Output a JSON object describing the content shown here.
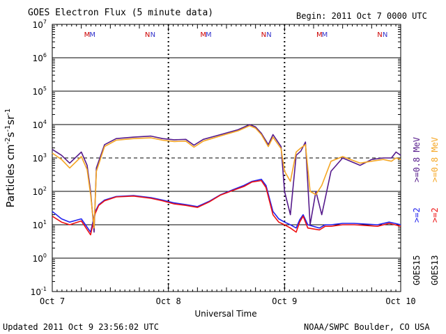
{
  "header": {
    "title": "GOES Electron Flux (5 minute data)",
    "begin": "Begin: 2011 Oct 7 0000 UTC"
  },
  "footer": {
    "updated": "Updated 2011 Oct  9 23:56:02 UTC",
    "source": "NOAA/SWPC Boulder, CO USA"
  },
  "chart_data": {
    "type": "line",
    "title": "GOES Electron Flux (5 minute data)",
    "xlabel": "Universal Time",
    "ylabel": "Particles cm-2 s-1 sr-1",
    "yscale": "log",
    "ylim": [
      0.1,
      10000000
    ],
    "xlim_days": [
      0,
      3
    ],
    "x_tick_labels": [
      "Oct 7",
      "Oct 8",
      "Oct 9",
      "Oct 10"
    ],
    "y_tick_labels": [
      {
        "base": "10",
        "exp": "-1"
      },
      {
        "base": "10",
        "exp": "0"
      },
      {
        "base": "10",
        "exp": "1"
      },
      {
        "base": "10",
        "exp": "2"
      },
      {
        "base": "10",
        "exp": "3"
      },
      {
        "base": "10",
        "exp": "4"
      },
      {
        "base": "10",
        "exp": "5"
      },
      {
        "base": "10",
        "exp": "6"
      },
      {
        "base": "10",
        "exp": "7"
      }
    ],
    "threshold": 1000,
    "markers": [
      {
        "label": "M",
        "day": 0.3,
        "color": "#cc0000"
      },
      {
        "label": "M",
        "day": 0.31,
        "color": "#3333cc"
      },
      {
        "label": "N",
        "day": 0.82,
        "color": "#cc0000"
      },
      {
        "label": "N",
        "day": 0.83,
        "color": "#3333cc"
      },
      {
        "label": "M",
        "day": 1.3,
        "color": "#cc0000"
      },
      {
        "label": "M",
        "day": 1.31,
        "color": "#3333cc"
      },
      {
        "label": "N",
        "day": 1.82,
        "color": "#cc0000"
      },
      {
        "label": "N",
        "day": 1.83,
        "color": "#3333cc"
      },
      {
        "label": "M",
        "day": 2.3,
        "color": "#cc0000"
      },
      {
        "label": "M",
        "day": 2.31,
        "color": "#3333cc"
      },
      {
        "label": "N",
        "day": 2.82,
        "color": "#cc0000"
      },
      {
        "label": "N",
        "day": 2.83,
        "color": "#3333cc"
      }
    ],
    "series": [
      {
        "name": ">=2 MeV GOES15",
        "color": "#2222ee",
        "x": [
          0,
          0.08,
          0.15,
          0.25,
          0.33,
          0.37,
          0.4,
          0.45,
          0.55,
          0.7,
          0.85,
          0.95,
          1.05,
          1.15,
          1.25,
          1.35,
          1.45,
          1.55,
          1.65,
          1.72,
          1.8,
          1.84,
          1.9,
          1.95,
          2.0,
          2.05,
          2.1,
          2.13,
          2.16,
          2.2,
          2.3,
          2.35,
          2.4,
          2.5,
          2.6,
          2.8,
          2.9,
          2.95,
          3.0
        ],
        "y": [
          25,
          15,
          12,
          15,
          6,
          25,
          40,
          55,
          70,
          75,
          65,
          55,
          45,
          40,
          35,
          50,
          80,
          110,
          150,
          200,
          230,
          150,
          25,
          15,
          12,
          10,
          8,
          14,
          20,
          10,
          8,
          10,
          10,
          11,
          11,
          10,
          12,
          11,
          10
        ]
      },
      {
        "name": ">=2 MeV GOES13",
        "color": "#ee1111",
        "x": [
          0,
          0.08,
          0.15,
          0.25,
          0.33,
          0.37,
          0.4,
          0.45,
          0.55,
          0.7,
          0.85,
          0.95,
          1.05,
          1.15,
          1.25,
          1.35,
          1.45,
          1.55,
          1.65,
          1.72,
          1.8,
          1.84,
          1.9,
          1.95,
          2.0,
          2.05,
          2.1,
          2.13,
          2.16,
          2.2,
          2.3,
          2.35,
          2.4,
          2.5,
          2.6,
          2.8,
          2.9,
          2.95,
          3.0
        ],
        "y": [
          18,
          12,
          10,
          13,
          5,
          22,
          38,
          52,
          68,
          72,
          62,
          52,
          42,
          38,
          33,
          48,
          78,
          105,
          140,
          190,
          210,
          130,
          20,
          12,
          10,
          8,
          6,
          12,
          18,
          8,
          7,
          9,
          9,
          10,
          10,
          9,
          11,
          10,
          9
        ]
      },
      {
        "name": ">=0.8 MeV GOES15",
        "color": "#551a8b",
        "x": [
          0,
          0.08,
          0.15,
          0.25,
          0.3,
          0.33,
          0.36,
          0.38,
          0.45,
          0.55,
          0.7,
          0.85,
          0.95,
          1.05,
          1.15,
          1.22,
          1.3,
          1.45,
          1.6,
          1.7,
          1.75,
          1.8,
          1.86,
          1.9,
          1.97,
          2.0,
          2.05,
          2.1,
          2.14,
          2.18,
          2.22,
          2.27,
          2.32,
          2.4,
          2.5,
          2.65,
          2.75,
          2.85,
          2.92,
          2.96,
          3.0
        ],
        "y": [
          1800,
          1200,
          700,
          1500,
          600,
          100,
          6,
          500,
          2500,
          3800,
          4200,
          4500,
          3800,
          3500,
          3600,
          2400,
          3600,
          5000,
          7000,
          10000,
          8500,
          5500,
          2500,
          5000,
          2200,
          100,
          20,
          1200,
          1600,
          3000,
          10,
          100,
          20,
          400,
          1000,
          600,
          900,
          1000,
          1000,
          1500,
          1200
        ]
      },
      {
        "name": ">=0.8 MeV GOES13",
        "color": "#f5a623",
        "x": [
          0,
          0.08,
          0.15,
          0.25,
          0.3,
          0.33,
          0.36,
          0.38,
          0.45,
          0.55,
          0.7,
          0.85,
          0.95,
          1.05,
          1.15,
          1.22,
          1.3,
          1.45,
          1.6,
          1.7,
          1.75,
          1.8,
          1.86,
          1.9,
          1.97,
          2.0,
          2.05,
          2.1,
          2.14,
          2.18,
          2.22,
          2.27,
          2.32,
          2.4,
          2.5,
          2.65,
          2.75,
          2.85,
          2.92,
          2.96,
          3.0
        ],
        "y": [
          1400,
          900,
          500,
          1100,
          450,
          80,
          8,
          400,
          2200,
          3400,
          3800,
          4000,
          3400,
          3100,
          3200,
          2100,
          3200,
          4600,
          6500,
          9200,
          7800,
          5000,
          2200,
          4200,
          1900,
          400,
          200,
          1500,
          2000,
          2500,
          100,
          80,
          150,
          800,
          1100,
          700,
          800,
          900,
          800,
          1000,
          900
        ]
      }
    ],
    "legend": {
      "labels": [
        {
          "text": "GOES15",
          "color": "#000000",
          "x": 0
        },
        {
          "text": ">=2",
          "color": "#2222ee",
          "x": 1
        },
        {
          "text": ">=0.8 MeV",
          "color": "#551a8b",
          "x": 2
        },
        {
          "text": "GOES13",
          "color": "#000000",
          "x": 3
        },
        {
          "text": ">=2",
          "color": "#ee1111",
          "x": 4
        },
        {
          "text": ">=0.8 MeV",
          "color": "#f5a623",
          "x": 5
        }
      ]
    }
  }
}
